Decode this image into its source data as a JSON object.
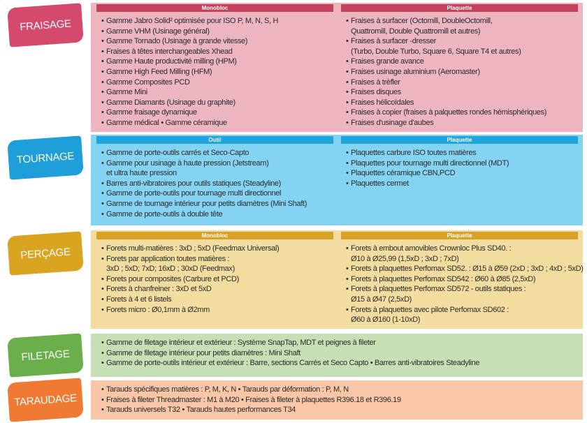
{
  "sections": [
    {
      "label": "FRAISAGE",
      "columns": [
        {
          "header": "Monobloc",
          "items": [
            [
              "Gamme Jabro Solid² optimisée pour ISO P, M, N, S, H"
            ],
            [
              "Gamme VHM (Usinage général)"
            ],
            [
              "Gamme Tornado (Usinage à grande vitesse)"
            ],
            [
              "Fraises à têtes interchangeables Xhead"
            ],
            [
              "Gamme Haute productivité milling (HPM)"
            ],
            [
              "Gamme High Feed Milling (HFM)"
            ],
            [
              "Gamme Composites PCD"
            ],
            [
              "Gamme Mini"
            ],
            [
              "Gamme Diamants (Usinage du graphite)"
            ],
            [
              "Gamme fraisage dynamique"
            ],
            [
              "Gamme médical • Gamme céramique"
            ]
          ]
        },
        {
          "header": "Plaquette",
          "items": [
            [
              "Fraises à surfacer (Octomill, DoubleOctomill,",
              "Quattromill, Double Quattromill et autres)"
            ],
            [
              "Fraises à surfacer -dresser",
              "(Turbo, Double Turbo, Square 6, Square T4 et autres)"
            ],
            [
              "Fraises grande avance"
            ],
            [
              "Fraises usinage aluminium (Aeromaster)"
            ],
            [
              "Fraises à trèfler"
            ],
            [
              "Fraises disques"
            ],
            [
              "Fraises hélicoïdales"
            ],
            [
              "Fraises à copier (fraises à palquettes rondes hémisphériques)"
            ],
            [
              "Fraises d'usinage d'aubes"
            ]
          ]
        }
      ]
    },
    {
      "label": "TOURNAGE",
      "columns": [
        {
          "header": "Outil",
          "items": [
            [
              "Gamme de porte-outils carrés et Seco-Capto"
            ],
            [
              "Gamme pour usinage à haute pression (Jetstream)",
              "et ultra haute pression"
            ],
            [
              "Barres anti-vibratoires pour outils statiques (Steadyline)"
            ],
            [
              "Gamme de porte-outils pour tournage multi directionnel"
            ],
            [
              "Gamme de tournage intérieur pour petits diamètres (Mini Shaft)"
            ],
            [
              "Gamme de porte-outils à double tête"
            ]
          ]
        },
        {
          "header": "Plaquette",
          "items": [
            [
              "Plaquettes carbure ISO toutes matières"
            ],
            [
              "Plaquettes pour tournage multi directionnel (MDT)"
            ],
            [
              "Plaquettes céramique CBN,PCD"
            ],
            [
              "Plaquettes cermet"
            ]
          ]
        }
      ]
    },
    {
      "label": "PERÇAGE",
      "columns": [
        {
          "header": "Monobloc",
          "items": [
            [
              "Forets multi-matières : 3xD ; 5xD (Feedmax Universal)"
            ],
            [
              "Forets par application toutes matières :",
              "3xD ; 5xD; 7xD; 16xD ; 30xD (Feedmax)"
            ],
            [
              "Forets pour composites (Carbure et PCD)"
            ],
            [
              "Forets à chanfreiner : 3xD et 5xD"
            ],
            [
              "Forets à 4 et 6 listels"
            ],
            [
              "Forets micro : Ø0,1mm à Ø2mm"
            ]
          ]
        },
        {
          "header": "Plaquette",
          "items": [
            [
              "Forets à embout amovibles Crownloc Plus SD40. :",
              "Ø10 à Ø25,99 (1,5xD ; 3xD ; 7xD)"
            ],
            [
              "Forets à plaquettes Perfomax SD52. : Ø15 à Ø59 (2xD ; 3xD ; 4xD ; 5xD)"
            ],
            [
              "Forets à plaquettes Perfomax SD542 : Ø60 à Ø85 (2,5xD)"
            ],
            [
              "Forets à plaquettes Perfomax SD572 - outils statiques :",
              "Ø15 à Ø47 (2,5xD)"
            ],
            [
              "Forets à plaquettes avec pilote Perfomax SD602 :",
              "Ø60 à Ø160 (1-10xD)"
            ]
          ]
        }
      ]
    },
    {
      "label": "FILETAGE",
      "columns": [
        {
          "items": [
            [
              "Gamme de filetage intérieur et extérieur : Système SnapTap, MDT et peignes à fileter"
            ],
            [
              "Gamme de filetage intérieur pour petits diamètres : Mini Shaft"
            ],
            [
              "Gamme de porte-outils intérieur et extérieur : Barre, sections Carrés et Seco Capto • Barres anti-vibratoires Steadyline"
            ]
          ]
        }
      ]
    },
    {
      "label": "TARAUDAGE",
      "columns": [
        {
          "items": [
            [
              "Tarauds spécifiques matières : P, M, K, N • Tarauds par déformation : P, M, N"
            ],
            [
              "Fraises à fileter Threadmaster : M1 à M20 • Fraises à fileter à plaquettes R396.18 et R396.19"
            ],
            [
              "Tarauds universels T32 • Tarauds hautes performances T34"
            ]
          ]
        }
      ]
    }
  ]
}
